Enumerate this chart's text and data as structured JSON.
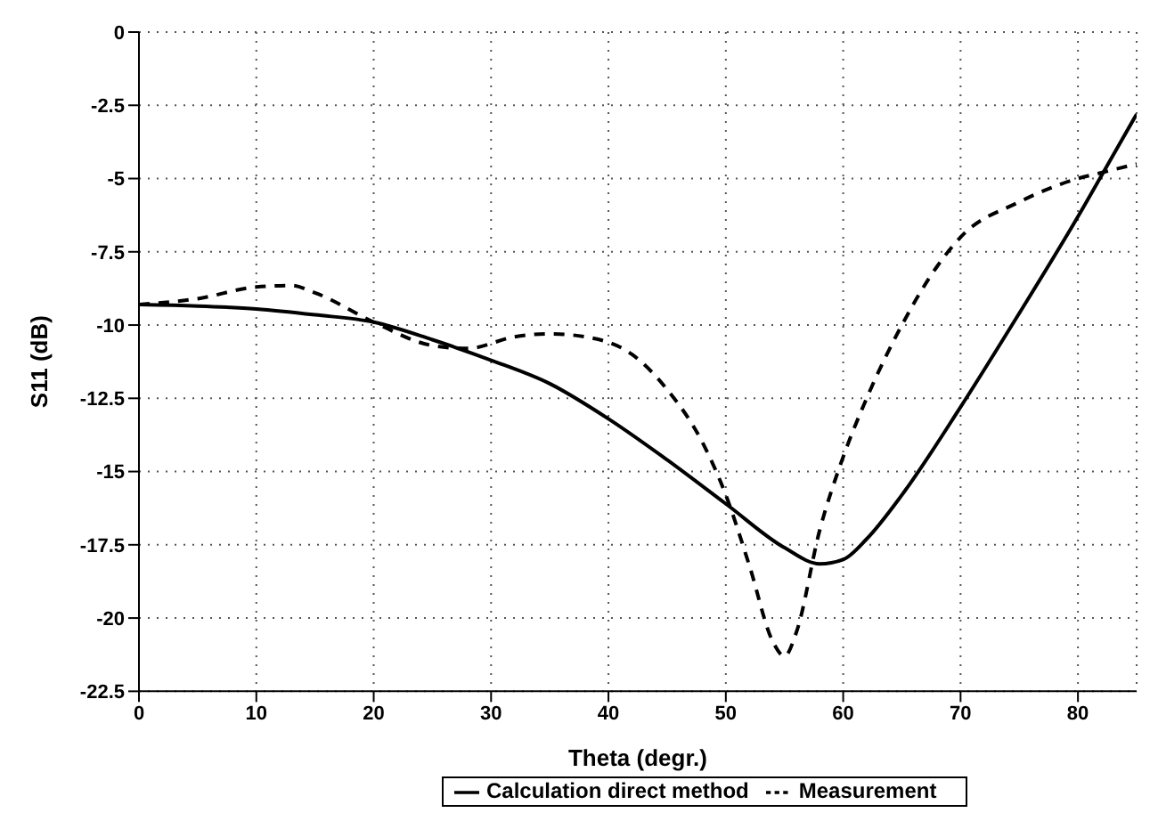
{
  "chart_data": {
    "type": "line",
    "xlabel": "Theta (degr.)",
    "ylabel": "S11 (dB)",
    "xlim": [
      0,
      85
    ],
    "xticks": [
      0,
      10,
      20,
      30,
      40,
      50,
      60,
      70,
      80
    ],
    "ylim": [
      -22.5,
      0
    ],
    "yticks": [
      -22.5,
      -20,
      -17.5,
      -15,
      -12.5,
      -10,
      -7.5,
      -5,
      -2.5,
      0
    ],
    "grid": true,
    "legend": "bottom",
    "marker": "none",
    "series": [
      {
        "name": "Calculation direct method",
        "color": "#000000",
        "line_style": "solid",
        "x": [
          0,
          5,
          10,
          15,
          20,
          25,
          30,
          35,
          40,
          45,
          50,
          55,
          58,
          60,
          62,
          65,
          70,
          75,
          80,
          83,
          85
        ],
        "values": [
          -9.3,
          -9.35,
          -9.45,
          -9.65,
          -9.9,
          -10.5,
          -11.2,
          -12,
          -13.2,
          -14.6,
          -16.1,
          -17.6,
          -18.15,
          -18,
          -17.3,
          -15.8,
          -12.8,
          -9.6,
          -6.3,
          -4.2,
          -2.8
        ]
      },
      {
        "name": "Measurement",
        "color": "#000000",
        "line_style": "dashed",
        "x": [
          0,
          5,
          10,
          13,
          15,
          20,
          25,
          28,
          32,
          35,
          38,
          42,
          45,
          48,
          50,
          52,
          54,
          55,
          56,
          58,
          60,
          62,
          65,
          68,
          70,
          75,
          80,
          82,
          85
        ],
        "values": [
          -9.3,
          -9.1,
          -8.7,
          -8.65,
          -8.9,
          -9.9,
          -10.7,
          -10.8,
          -10.4,
          -10.3,
          -10.4,
          -11,
          -12.2,
          -14,
          -15.8,
          -18.2,
          -20.8,
          -21.3,
          -20.5,
          -17,
          -14.5,
          -12.5,
          -10,
          -8,
          -7,
          -5.8,
          -5,
          -4.8,
          -4.5
        ]
      }
    ]
  }
}
